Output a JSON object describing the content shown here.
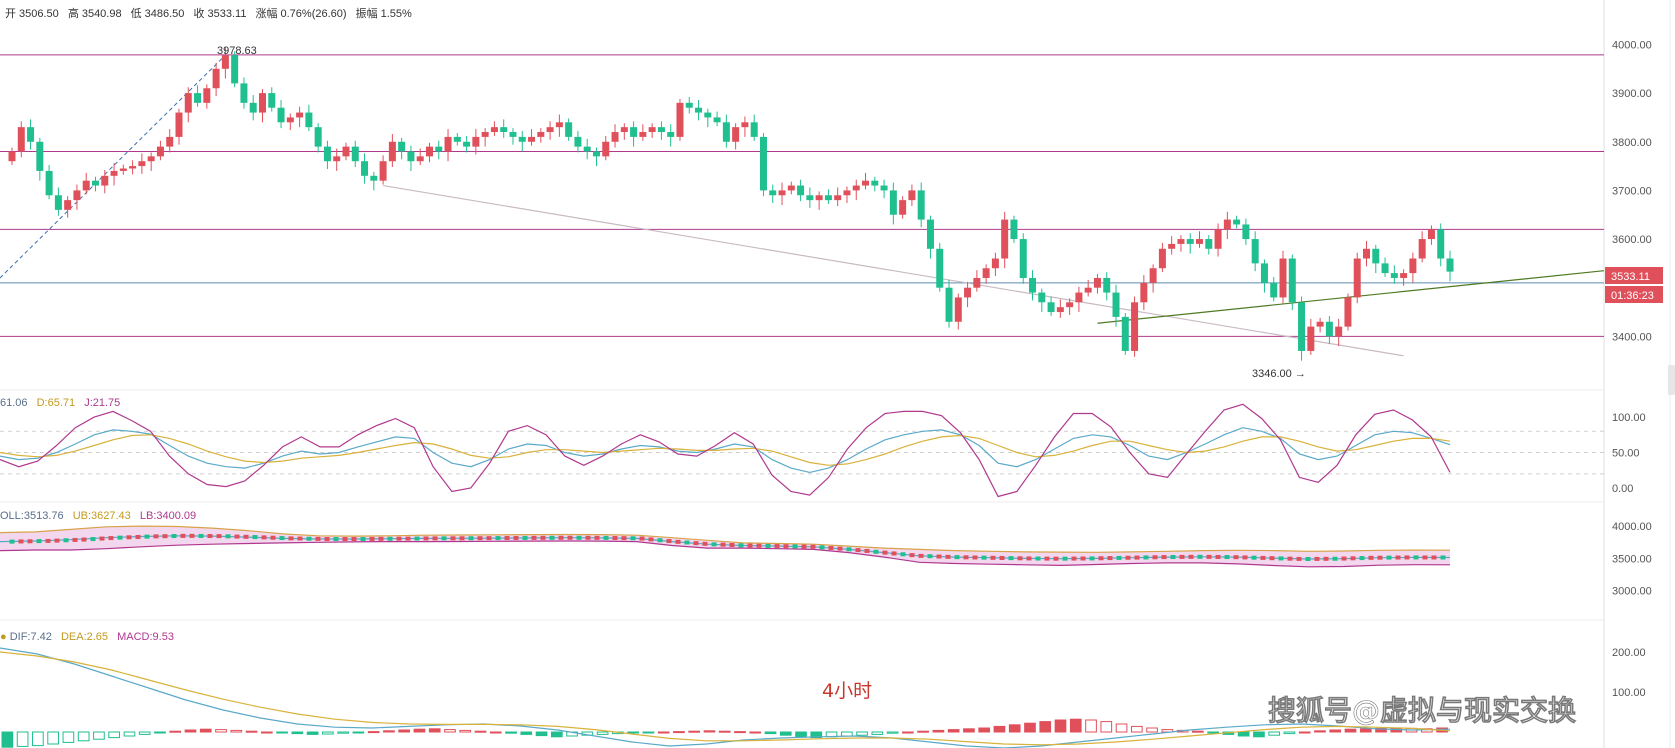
{
  "header": {
    "open_label": "开",
    "open": "3506.50",
    "high_label": "高",
    "high": "3540.98",
    "low_label": "低",
    "low": "3486.50",
    "close_label": "收",
    "close": "3533.11",
    "change_label": "涨幅",
    "change": "0.76%(26.60)",
    "amplitude_label": "振幅",
    "amplitude": "1.55%"
  },
  "price_tag": "3533.11",
  "countdown": "01:36:23",
  "annotations": {
    "high_mark": "3978.63",
    "low_mark": "3346.00 →"
  },
  "timeframe": "4小时",
  "watermark": "搜狐号@虚拟与现实交换",
  "kdj": {
    "k": "61.06",
    "d": "D:65.71",
    "j": "J:21.75"
  },
  "boll": {
    "mid": "OLL:3513.76",
    "ub": "UB:3627.43",
    "lb": "LB:3400.09"
  },
  "macd": {
    "dif": "DIF:7.42",
    "dea": "DEA:2.65",
    "macd": "MACD:9.53"
  },
  "colors": {
    "up": "#e0505b",
    "down": "#1fbf8f",
    "level": "#b0388e",
    "trend": "#4f7a24"
  },
  "chart_data": [
    {
      "type": "candlestick",
      "ylim": [
        3300,
        4040
      ],
      "yticks": [
        "4000.00",
        "3900.00",
        "3800.00",
        "3700.00",
        "3600.00",
        "3400.00"
      ],
      "ytick_values": [
        4000,
        3900,
        3800,
        3700,
        3600,
        3400
      ],
      "horizontal_levels": [
        3978.63,
        3780,
        3620,
        3510,
        3400
      ],
      "trendlines": [
        {
          "from": [
            40,
            3710
          ],
          "to": [
            150,
            3360
          ]
        },
        {
          "from": [
            117,
            3427
          ],
          "to": [
            194,
            3535
          ]
        }
      ],
      "closes": [
        3780,
        3830,
        3800,
        3740,
        3690,
        3660,
        3680,
        3700,
        3720,
        3710,
        3730,
        3740,
        3745,
        3750,
        3760,
        3770,
        3790,
        3810,
        3860,
        3900,
        3880,
        3910,
        3950,
        3978,
        3920,
        3880,
        3860,
        3900,
        3870,
        3840,
        3850,
        3860,
        3830,
        3790,
        3760,
        3770,
        3790,
        3760,
        3730,
        3720,
        3760,
        3800,
        3780,
        3760,
        3770,
        3790,
        3780,
        3810,
        3800,
        3790,
        3810,
        3820,
        3830,
        3820,
        3810,
        3800,
        3810,
        3820,
        3830,
        3840,
        3810,
        3790,
        3780,
        3770,
        3800,
        3820,
        3830,
        3810,
        3820,
        3830,
        3820,
        3810,
        3880,
        3870,
        3860,
        3850,
        3840,
        3800,
        3830,
        3840,
        3810,
        3700,
        3690,
        3700,
        3710,
        3690,
        3680,
        3690,
        3680,
        3690,
        3700,
        3710,
        3720,
        3710,
        3700,
        3650,
        3680,
        3700,
        3640,
        3580,
        3500,
        3430,
        3480,
        3500,
        3520,
        3540,
        3560,
        3640,
        3600,
        3520,
        3490,
        3470,
        3450,
        3460,
        3470,
        3490,
        3500,
        3520,
        3490,
        3440,
        3370,
        3470,
        3510,
        3540,
        3580,
        3590,
        3600,
        3590,
        3600,
        3580,
        3620,
        3640,
        3630,
        3600,
        3550,
        3510,
        3480,
        3560,
        3470,
        3370,
        3420,
        3430,
        3400,
        3420,
        3480,
        3560,
        3580,
        3550,
        3530,
        3520,
        3530,
        3560,
        3600,
        3620,
        3560,
        3533
      ]
    },
    {
      "type": "line",
      "title": "KDJ",
      "ylim": [
        0,
        110
      ],
      "yticks": [
        "100.00",
        "50.00",
        "0.00"
      ],
      "ytick_values": [
        100,
        50,
        0
      ],
      "series": [
        {
          "name": "K",
          "values": [
            45,
            40,
            42,
            50,
            62,
            75,
            82,
            80,
            76,
            60,
            45,
            35,
            30,
            28,
            35,
            45,
            52,
            48,
            50,
            58,
            65,
            72,
            70,
            50,
            35,
            30,
            40,
            55,
            62,
            60,
            50,
            45,
            48,
            55,
            60,
            58,
            52,
            50,
            55,
            62,
            58,
            40,
            28,
            22,
            28,
            40,
            55,
            68,
            75,
            80,
            82,
            75,
            60,
            35,
            30,
            40,
            55,
            70,
            75,
            72,
            60,
            45,
            40,
            50,
            62,
            75,
            85,
            80,
            70,
            48,
            40,
            45,
            60,
            75,
            80,
            78,
            70,
            61
          ]
        },
        {
          "name": "D",
          "values": [
            50,
            46,
            44,
            46,
            52,
            60,
            68,
            74,
            75,
            70,
            62,
            52,
            44,
            38,
            36,
            38,
            42,
            44,
            46,
            50,
            55,
            60,
            64,
            62,
            55,
            46,
            42,
            44,
            50,
            54,
            54,
            52,
            50,
            52,
            54,
            56,
            55,
            53,
            53,
            55,
            56,
            52,
            44,
            36,
            32,
            34,
            40,
            48,
            58,
            66,
            72,
            74,
            70,
            60,
            50,
            44,
            46,
            52,
            60,
            66,
            66,
            60,
            54,
            50,
            52,
            58,
            66,
            72,
            72,
            66,
            58,
            52,
            54,
            60,
            66,
            70,
            70,
            66
          ]
        },
        {
          "name": "J",
          "values": [
            40,
            30,
            38,
            60,
            85,
            100,
            108,
            95,
            80,
            45,
            20,
            5,
            2,
            10,
            32,
            58,
            72,
            58,
            58,
            75,
            88,
            98,
            85,
            30,
            -5,
            0,
            35,
            80,
            88,
            75,
            45,
            32,
            45,
            62,
            75,
            65,
            48,
            45,
            60,
            78,
            62,
            18,
            -5,
            -10,
            15,
            55,
            85,
            105,
            108,
            108,
            102,
            78,
            40,
            -12,
            -5,
            32,
            72,
            105,
            105,
            86,
            50,
            20,
            15,
            48,
            80,
            110,
            118,
            98,
            68,
            15,
            8,
            32,
            75,
            104,
            110,
            96,
            72,
            22
          ]
        }
      ]
    },
    {
      "type": "line",
      "title": "BOLL",
      "ylim": [
        2700,
        4250
      ],
      "yticks": [
        "4000.00",
        "3500.00",
        "3000.00"
      ],
      "ytick_values": [
        4000,
        3500,
        3000
      ],
      "series": [
        {
          "name": "MB",
          "values": [
            3760,
            3770,
            3790,
            3820,
            3840,
            3850,
            3845,
            3830,
            3810,
            3800,
            3800,
            3805,
            3810,
            3812,
            3815,
            3818,
            3820,
            3818,
            3810,
            3760,
            3720,
            3700,
            3690,
            3680,
            3640,
            3590,
            3540,
            3520,
            3510,
            3500,
            3495,
            3500,
            3510,
            3520,
            3525,
            3520,
            3505,
            3490,
            3495,
            3510,
            3515,
            3514
          ]
        },
        {
          "name": "UB",
          "values": [
            3900,
            3910,
            3950,
            3990,
            4000,
            3995,
            3970,
            3930,
            3880,
            3850,
            3845,
            3850,
            3860,
            3862,
            3865,
            3868,
            3870,
            3868,
            3860,
            3820,
            3780,
            3740,
            3730,
            3720,
            3690,
            3660,
            3640,
            3620,
            3610,
            3600,
            3598,
            3595,
            3600,
            3610,
            3620,
            3625,
            3620,
            3610,
            3615,
            3625,
            3628,
            3627
          ]
        },
        {
          "name": "LB",
          "values": [
            3620,
            3630,
            3630,
            3650,
            3680,
            3705,
            3720,
            3730,
            3740,
            3750,
            3755,
            3760,
            3760,
            3762,
            3765,
            3768,
            3770,
            3768,
            3760,
            3700,
            3660,
            3660,
            3650,
            3640,
            3590,
            3520,
            3440,
            3420,
            3410,
            3400,
            3392,
            3405,
            3420,
            3430,
            3430,
            3415,
            3390,
            3370,
            3375,
            3395,
            3402,
            3400
          ]
        }
      ]
    },
    {
      "type": "bar",
      "title": "MACD",
      "ylim": [
        -40,
        260
      ],
      "yticks": [
        "200.00",
        "100.00"
      ],
      "ytick_values": [
        200,
        100
      ],
      "series": [
        {
          "name": "MACD",
          "values": [
            -38,
            -36,
            -34,
            -30,
            -26,
            -22,
            -18,
            -14,
            -10,
            -6,
            -2,
            2,
            5,
            7,
            6,
            4,
            2,
            0,
            -2,
            -4,
            -6,
            -5,
            -3,
            -1,
            1,
            3,
            5,
            7,
            8,
            6,
            4,
            2,
            0,
            -3,
            -6,
            -9,
            -12,
            -10,
            -8,
            -6,
            -4,
            -2,
            -1,
            0,
            1,
            2,
            3,
            2,
            1,
            0,
            -4,
            -8,
            -12,
            -14,
            -12,
            -10,
            -8,
            -6,
            -3,
            0,
            2,
            4,
            6,
            8,
            10,
            14,
            18,
            22,
            26,
            30,
            32,
            30,
            26,
            20,
            14,
            10,
            6,
            4,
            2,
            -2,
            -6,
            -10,
            -12,
            -8,
            -4,
            0,
            3,
            5,
            7,
            8,
            9,
            10,
            9,
            8,
            10
          ]
        },
        {
          "name": "DIF",
          "values": [
            210,
            195,
            170,
            140,
            110,
            80,
            55,
            35,
            20,
            12,
            10,
            14,
            18,
            20,
            15,
            5,
            -10,
            -25,
            -35,
            -30,
            -20,
            -15,
            -12,
            -10,
            -15,
            -25,
            -35,
            -40,
            -35,
            -25,
            -15,
            -5,
            5,
            12,
            18,
            20,
            15,
            8,
            5,
            7
          ]
        },
        {
          "name": "DEA",
          "values": [
            200,
            190,
            175,
            155,
            130,
            105,
            82,
            62,
            45,
            32,
            24,
            20,
            19,
            19,
            18,
            14,
            6,
            -5,
            -16,
            -22,
            -22,
            -20,
            -17,
            -15,
            -15,
            -18,
            -24,
            -30,
            -32,
            -30,
            -25,
            -18,
            -10,
            -2,
            6,
            12,
            14,
            12,
            9,
            3
          ]
        }
      ]
    }
  ]
}
